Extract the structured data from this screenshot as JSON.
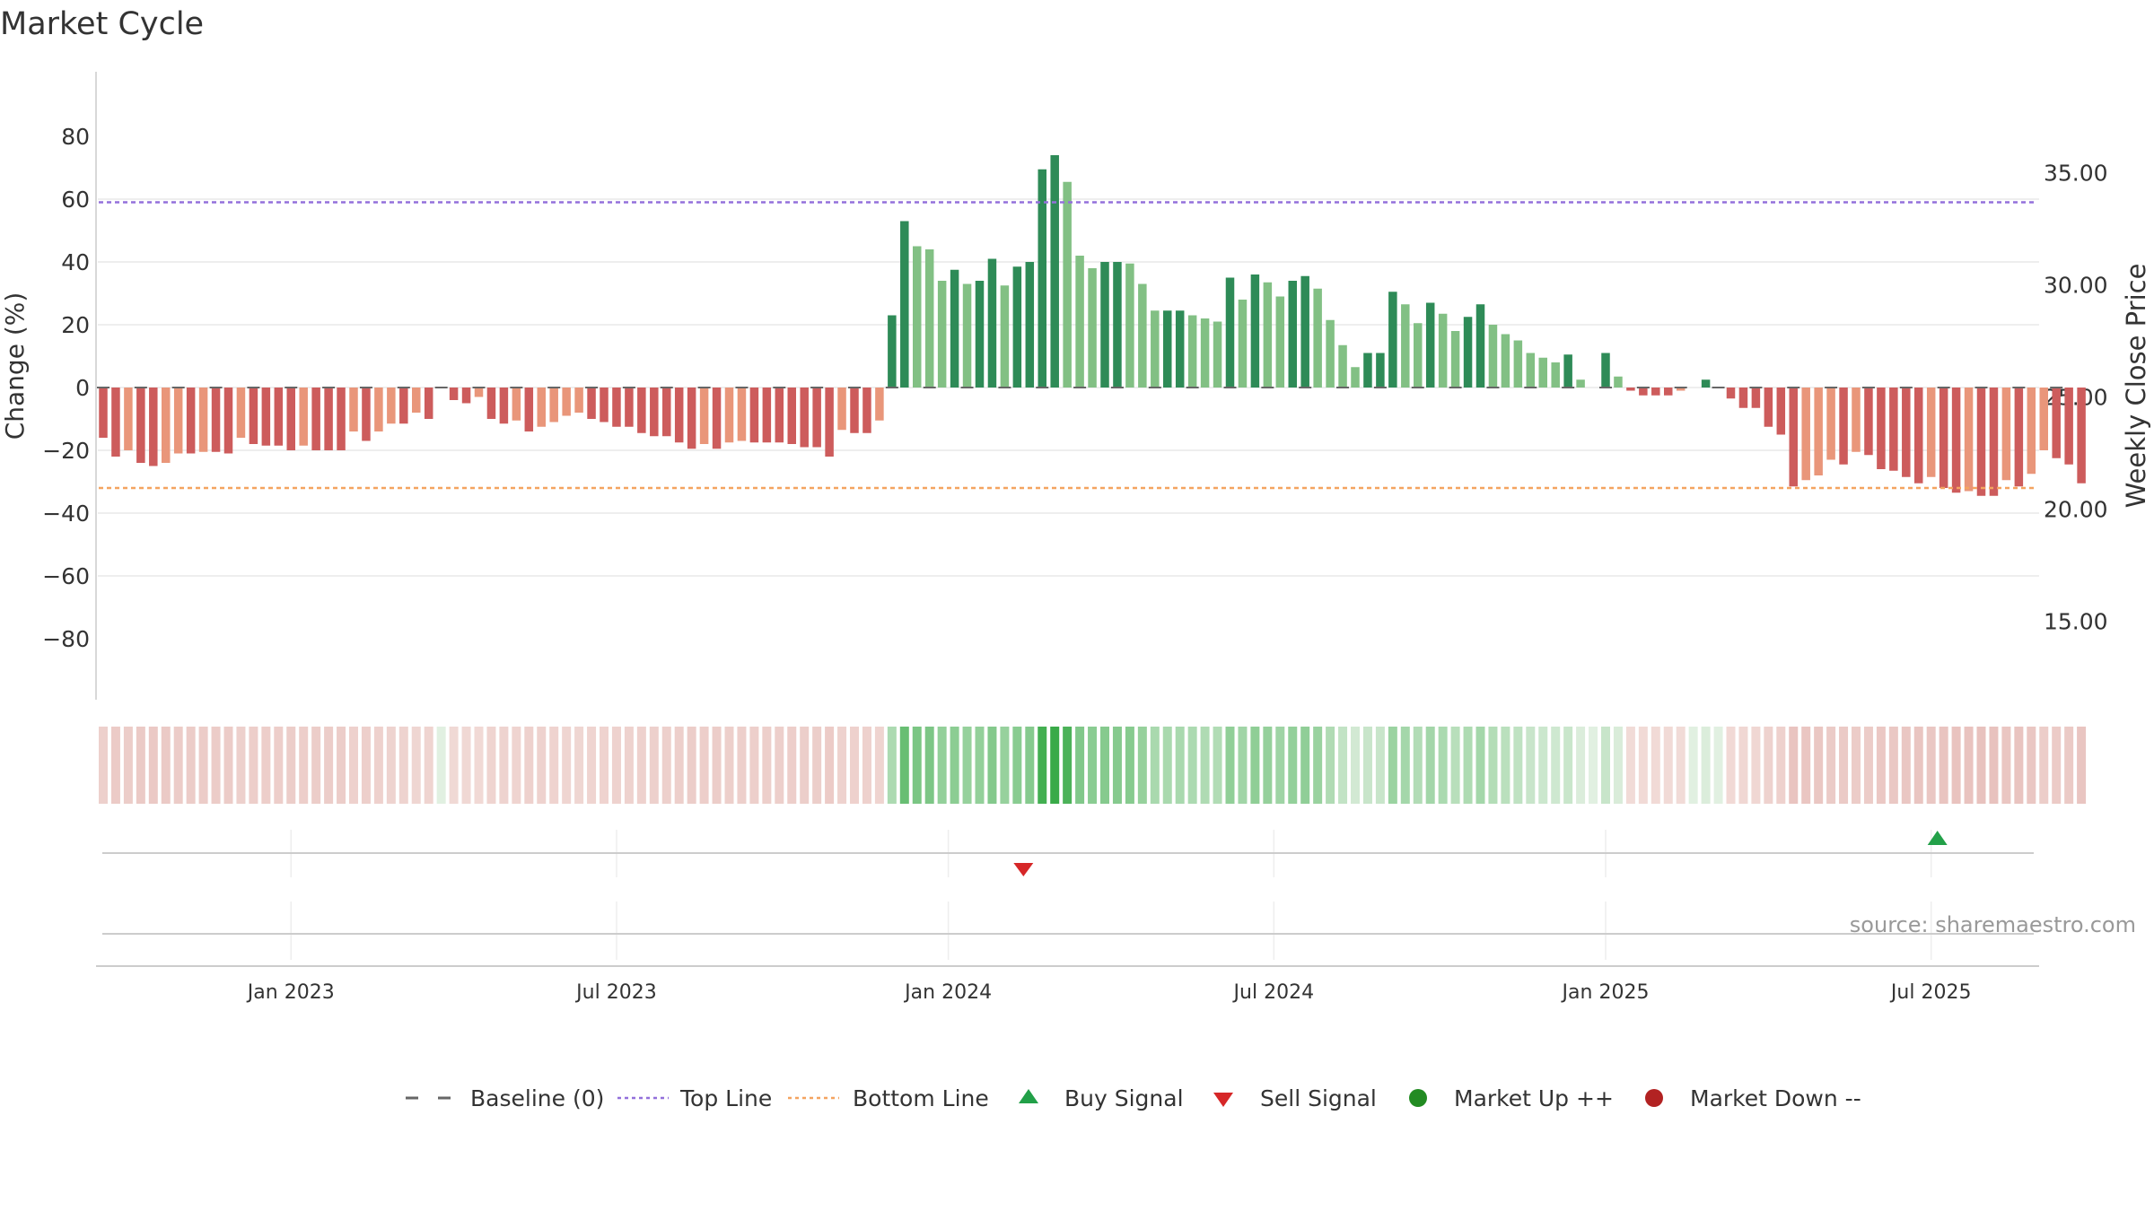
{
  "chart_data": {
    "type": "bar",
    "title": "Market Cycle",
    "ylabel": "Change (%)",
    "y2label": "Weekly Close Price",
    "ylim": [
      -80,
      80
    ],
    "yticks": [
      "80",
      "60",
      "40",
      "20",
      "0",
      "−20",
      "−40",
      "−60",
      "−80"
    ],
    "y2ticks": [
      "35.00",
      "30.00",
      "25.00",
      "20.00",
      "15.00"
    ],
    "y2tick_values": [
      35,
      30,
      25,
      20,
      15
    ],
    "y2lim": [
      11.5,
      39.5
    ],
    "x_ticks": [
      "Jan 2023",
      "Jul 2023",
      "Jan 2024",
      "Jul 2024",
      "Jan 2025",
      "Jul 2025"
    ],
    "x_tick_weeks": [
      15,
      41,
      67.5,
      93.5,
      120,
      146
    ],
    "top_line": 59,
    "bottom_line": -32,
    "values": [
      -16,
      -22,
      -20,
      -24,
      -25,
      -24,
      -21,
      -21,
      -20.5,
      -20.5,
      -21,
      -16,
      -18,
      -18.5,
      -18.5,
      -20,
      -18.5,
      -20,
      -20,
      -20,
      -14,
      -17,
      -14,
      -11.5,
      -11.5,
      -8,
      -10,
      0,
      -4,
      -5,
      -3,
      -10,
      -11.5,
      -10.5,
      -14,
      -12.5,
      -11,
      -9,
      -8,
      -10,
      -11,
      -12.5,
      -12.5,
      -14.5,
      -15.5,
      -15.5,
      -17.5,
      -19.5,
      -18,
      -19.5,
      -17.5,
      -17,
      -17.5,
      -17.5,
      -17.5,
      -18,
      -19,
      -19,
      -22,
      -13.5,
      -14.5,
      -14.5,
      -10.5,
      23,
      53,
      45,
      44,
      34,
      37.5,
      33,
      34,
      41,
      32.5,
      38.5,
      40,
      69.5,
      74,
      65.5,
      42,
      38,
      40,
      40,
      39.5,
      33,
      24.5,
      24.5,
      24.5,
      23,
      22,
      21,
      35,
      28,
      36,
      33.5,
      29,
      34,
      35.5,
      31.5,
      21.5,
      13.5,
      6.5,
      11,
      11,
      30.5,
      26.5,
      20.5,
      27,
      23.5,
      18,
      22.5,
      26.5,
      20,
      17,
      15,
      11,
      9.5,
      8,
      10.5,
      2.5,
      0,
      11,
      3.5,
      -1,
      -2.5,
      -2.5,
      -2.5,
      -1,
      0,
      2.5,
      0,
      -3.5,
      -6.5,
      -6.5,
      -12.5,
      -15,
      -31.5,
      -29.5,
      -28,
      -23,
      -24.5,
      -20.5,
      -21.5,
      -26,
      -26.5,
      -28.5,
      -30.5,
      -28.5,
      -32,
      -33.5,
      -33,
      -34.5,
      -34.5,
      -29.5,
      -31.5,
      -27.5,
      -20,
      -22.5,
      -24.5,
      -30.5
    ],
    "signals": [
      {
        "type": "sell",
        "week": 73.5
      },
      {
        "type": "buy",
        "week": 146.5
      }
    ],
    "grid": true,
    "legend_position": "bottom"
  },
  "colors": {
    "dark_green": "#2e8b57",
    "light_green": "#82c084",
    "dark_red": "#cd5c5c",
    "light_red": "#e9967a",
    "top_line": "#9370db",
    "bottom_line": "#f4a460",
    "buy": "#22a048",
    "sell": "#d62728",
    "market_up": "#228b22",
    "market_down": "#b22222",
    "baseline": "#666666"
  },
  "source": "source: sharemaestro.com",
  "legend": {
    "baseline": "Baseline (0)",
    "top_line": "Top Line",
    "bottom_line": "Bottom Line",
    "buy": "Buy Signal",
    "sell": "Sell Signal",
    "market_up": "Market Up ++",
    "market_down": "Market Down --"
  }
}
